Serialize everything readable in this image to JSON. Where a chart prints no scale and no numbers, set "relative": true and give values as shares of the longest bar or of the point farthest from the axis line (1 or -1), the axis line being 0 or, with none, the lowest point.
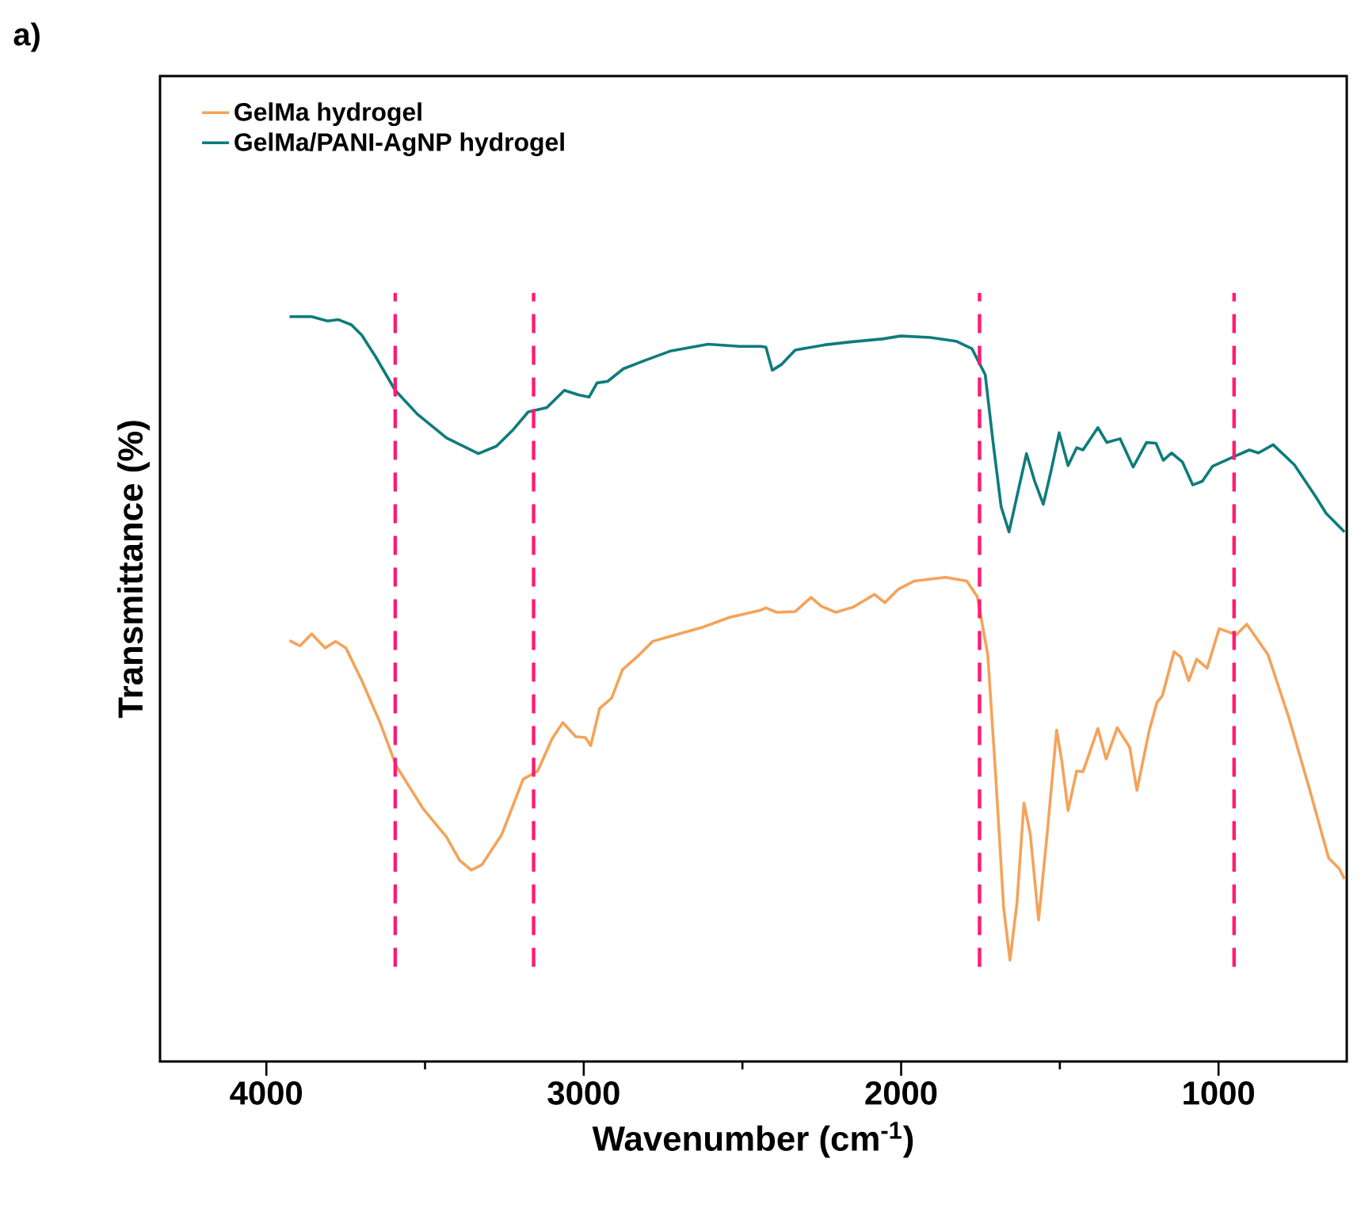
{
  "chart_data": {
    "type": "line",
    "title": "a)",
    "xlabel": "Wavenumber (cm$^{-1}$)",
    "ylabel": "Transmittance (%)",
    "relative": true,
    "xlim": [
      4335,
      596
    ],
    "xticks": [
      4000,
      3000,
      2000,
      1000
    ],
    "legend": "top left",
    "series": [
      {
        "name": "GelMa hydrogel",
        "color": "#f4a35a",
        "x": [
          3927,
          3894,
          3857,
          3815,
          3782,
          3749,
          3699,
          3641,
          3591,
          3507,
          3432,
          3391,
          3354,
          3321,
          3258,
          3191,
          3145,
          3100,
          3066,
          3025,
          2995,
          2978,
          2950,
          2912,
          2878,
          2825,
          2783,
          2725,
          2625,
          2542,
          2442,
          2426,
          2392,
          2334,
          2284,
          2251,
          2206,
          2151,
          2084,
          2051,
          2009,
          1959,
          1860,
          1793,
          1760,
          1727,
          1702,
          1677,
          1657,
          1635,
          1613,
          1593,
          1567,
          1540,
          1510,
          1494,
          1474,
          1447,
          1427,
          1380,
          1354,
          1319,
          1280,
          1257,
          1219,
          1194,
          1177,
          1140,
          1119,
          1094,
          1069,
          1036,
          998,
          944,
          911,
          844,
          778,
          711,
          653,
          620,
          603
        ],
        "values": [
          0.565,
          0.558,
          0.574,
          0.555,
          0.564,
          0.555,
          0.511,
          0.454,
          0.397,
          0.34,
          0.301,
          0.27,
          0.257,
          0.264,
          0.305,
          0.379,
          0.39,
          0.433,
          0.455,
          0.436,
          0.435,
          0.424,
          0.474,
          0.488,
          0.526,
          0.546,
          0.564,
          0.571,
          0.583,
          0.596,
          0.606,
          0.609,
          0.603,
          0.604,
          0.623,
          0.611,
          0.603,
          0.61,
          0.627,
          0.616,
          0.634,
          0.645,
          0.65,
          0.645,
          0.624,
          0.546,
          0.383,
          0.206,
          0.136,
          0.213,
          0.347,
          0.305,
          0.19,
          0.305,
          0.445,
          0.404,
          0.337,
          0.39,
          0.389,
          0.447,
          0.406,
          0.448,
          0.422,
          0.364,
          0.443,
          0.482,
          0.491,
          0.55,
          0.543,
          0.511,
          0.54,
          0.528,
          0.581,
          0.573,
          0.587,
          0.546,
          0.461,
          0.362,
          0.273,
          0.259,
          0.245
        ]
      },
      {
        "name": "GelMa/PANI-AgNP hydrogel",
        "color": "#0e7c7b",
        "x": [
          3927,
          3857,
          3807,
          3774,
          3732,
          3699,
          3657,
          3594,
          3524,
          3432,
          3332,
          3275,
          3225,
          3175,
          3116,
          3061,
          3016,
          2983,
          2958,
          2925,
          2875,
          2808,
          2725,
          2608,
          2509,
          2442,
          2426,
          2406,
          2376,
          2334,
          2242,
          2159,
          2059,
          2001,
          1909,
          1827,
          1777,
          1735,
          1710,
          1685,
          1660,
          1635,
          1605,
          1580,
          1552,
          1527,
          1502,
          1474,
          1447,
          1427,
          1380,
          1352,
          1310,
          1269,
          1227,
          1197,
          1174,
          1148,
          1114,
          1081,
          1051,
          1019,
          951,
          903,
          874,
          828,
          761,
          695,
          661,
          603
        ],
        "values": [
          1.0,
          1.0,
          0.994,
          0.996,
          0.989,
          0.975,
          0.947,
          0.901,
          0.869,
          0.837,
          0.816,
          0.826,
          0.847,
          0.872,
          0.878,
          0.901,
          0.895,
          0.892,
          0.911,
          0.913,
          0.93,
          0.941,
          0.954,
          0.963,
          0.96,
          0.96,
          0.959,
          0.928,
          0.936,
          0.955,
          0.962,
          0.966,
          0.97,
          0.974,
          0.972,
          0.967,
          0.957,
          0.922,
          0.83,
          0.745,
          0.711,
          0.759,
          0.816,
          0.78,
          0.748,
          0.794,
          0.844,
          0.8,
          0.824,
          0.821,
          0.851,
          0.831,
          0.836,
          0.798,
          0.831,
          0.83,
          0.807,
          0.817,
          0.805,
          0.774,
          0.779,
          0.799,
          0.812,
          0.821,
          0.817,
          0.828,
          0.801,
          0.759,
          0.736,
          0.711
        ]
      }
    ],
    "ref_lines": [
      {
        "axis": "x",
        "value": 3594,
        "color": "#ff1a75",
        "line_style": "dashed"
      },
      {
        "axis": "x",
        "value": 3158,
        "color": "#ff1a75",
        "line_style": "dashed"
      },
      {
        "axis": "x",
        "value": 1753,
        "color": "#ff1a75",
        "line_style": "dashed"
      },
      {
        "axis": "x",
        "value": 951,
        "color": "#ff1a75",
        "line_style": "dashed"
      }
    ]
  }
}
